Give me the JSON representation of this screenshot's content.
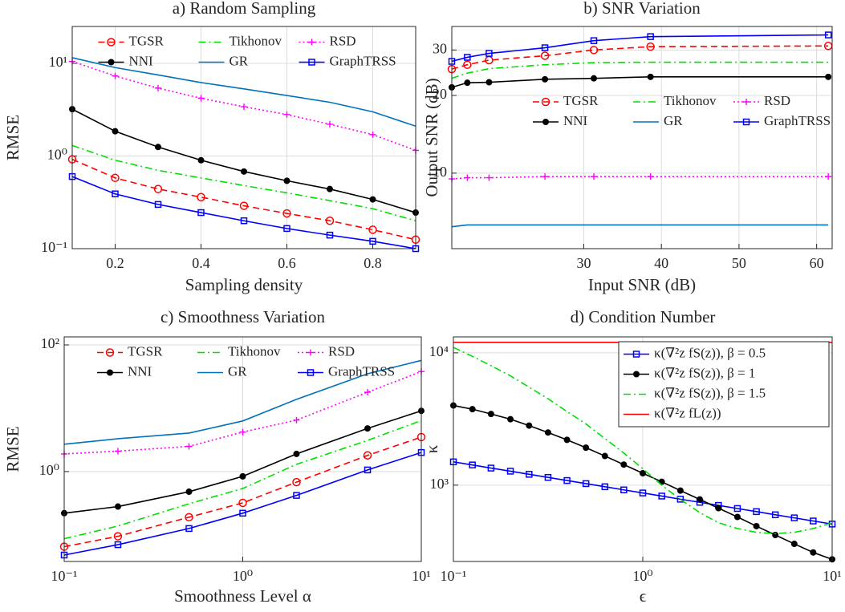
{
  "chart_data": [
    {
      "type": "line",
      "title": "a) Random Sampling",
      "x_label": "Sampling density",
      "y_label": "RMSE",
      "x": [
        0.1,
        0.2,
        0.3,
        0.4,
        0.5,
        0.6,
        0.7,
        0.8,
        0.9
      ],
      "xlim": [
        0.1,
        0.9
      ],
      "ylim": [
        0.1,
        25
      ],
      "xscale": "linear",
      "yscale": "log",
      "xticks": [
        0.2,
        0.4,
        0.6,
        0.8
      ],
      "yticks": [
        {
          "value": 0.1,
          "label": "10⁻¹"
        },
        {
          "value": 1,
          "label": "10⁰"
        },
        {
          "value": 10,
          "label": "10¹"
        }
      ],
      "grid": true,
      "legend": "upper center",
      "series": [
        {
          "name": "TGSR",
          "color": "#ff0000",
          "linestyle": "dashed",
          "marker": "circle",
          "values": [
            0.92,
            0.58,
            0.44,
            0.36,
            0.29,
            0.24,
            0.2,
            0.16,
            0.125
          ]
        },
        {
          "name": "Tikhonov",
          "color": "#00e000",
          "linestyle": "dashdot",
          "marker": "none",
          "values": [
            1.3,
            0.9,
            0.7,
            0.58,
            0.48,
            0.4,
            0.33,
            0.27,
            0.2
          ]
        },
        {
          "name": "RSD",
          "color": "#ff00ff",
          "linestyle": "dotted",
          "marker": "plus",
          "values": [
            10.5,
            7.3,
            5.4,
            4.2,
            3.4,
            2.8,
            2.2,
            1.7,
            1.15
          ]
        },
        {
          "name": "NNI",
          "color": "#000000",
          "linestyle": "solid",
          "marker": "dot",
          "values": [
            3.2,
            1.85,
            1.25,
            0.9,
            0.68,
            0.54,
            0.44,
            0.34,
            0.245
          ]
        },
        {
          "name": "GR",
          "color": "#0072bd",
          "linestyle": "solid",
          "marker": "none",
          "values": [
            11.5,
            9.0,
            7.5,
            6.2,
            5.3,
            4.5,
            3.8,
            3.0,
            2.1
          ]
        },
        {
          "name": "GraphTRSS",
          "color": "#0000ff",
          "linestyle": "solid",
          "marker": "square",
          "values": [
            0.6,
            0.39,
            0.3,
            0.245,
            0.2,
            0.165,
            0.14,
            0.12,
            0.1
          ]
        }
      ]
    },
    {
      "type": "line",
      "title": "b) SNR Variation",
      "x_label": "Input SNR (dB)",
      "y_label": "Output SNR (dB)",
      "x": [
        13,
        15,
        17.8,
        25,
        31.3,
        38.6,
        61.5
      ],
      "xlim": [
        13,
        62
      ],
      "ylim": [
        5.1,
        37
      ],
      "xscale": "linear",
      "yscale": "log",
      "xticks": [
        30,
        40,
        50,
        60
      ],
      "yticks": [
        10,
        20,
        30
      ],
      "grid": true,
      "legend": "center right",
      "series": [
        {
          "name": "TGSR",
          "color": "#ff0000",
          "linestyle": "dashed",
          "marker": "circle",
          "values": [
            25.3,
            26.3,
            27.4,
            28.5,
            30,
            30.9,
            31.1
          ]
        },
        {
          "name": "Tikhonov",
          "color": "#00e000",
          "linestyle": "dashdot",
          "marker": "none",
          "values": [
            23.3,
            24.4,
            25.4,
            26.3,
            26.8,
            26.9,
            26.9
          ]
        },
        {
          "name": "RSD",
          "color": "#ff00ff",
          "linestyle": "dotted",
          "marker": "plus",
          "values": [
            9.5,
            9.6,
            9.6,
            9.7,
            9.7,
            9.7,
            9.7
          ]
        },
        {
          "name": "NNI",
          "color": "#000000",
          "linestyle": "solid",
          "marker": "dot",
          "values": [
            21.5,
            22.4,
            22.5,
            23.1,
            23.3,
            23.6,
            23.6
          ]
        },
        {
          "name": "GR",
          "color": "#0072bd",
          "linestyle": "solid",
          "marker": "none",
          "values": [
            6.2,
            6.3,
            6.3,
            6.3,
            6.3,
            6.3,
            6.3
          ]
        },
        {
          "name": "GraphTRSS",
          "color": "#0000ff",
          "linestyle": "solid",
          "marker": "square",
          "values": [
            27.1,
            28.1,
            29.1,
            30.6,
            32.6,
            33.8,
            34.3
          ]
        }
      ]
    },
    {
      "type": "line",
      "title": "c) Smoothness Variation",
      "x_label": "Smoothness Level α",
      "y_label": "RMSE",
      "x": [
        0.1,
        0.2,
        0.5,
        1,
        2,
        5,
        10
      ],
      "xlim": [
        0.1,
        10
      ],
      "ylim": [
        0.038,
        134
      ],
      "xscale": "log",
      "yscale": "log",
      "xticks": [
        {
          "value": 0.1,
          "label": "10⁻¹"
        },
        {
          "value": 1,
          "label": "10⁰"
        },
        {
          "value": 10,
          "label": "10¹"
        }
      ],
      "yticks": [
        {
          "value": 1,
          "label": "10⁰"
        },
        {
          "value": 100,
          "label": "10²"
        }
      ],
      "grid": true,
      "legend": "upper center",
      "series": [
        {
          "name": "TGSR",
          "color": "#ff0000",
          "linestyle": "dashed",
          "marker": "circle",
          "values": [
            0.065,
            0.095,
            0.19,
            0.32,
            0.68,
            1.8,
            3.5
          ]
        },
        {
          "name": "Tikhonov",
          "color": "#00e000",
          "linestyle": "dashdot",
          "marker": "none",
          "values": [
            0.087,
            0.138,
            0.31,
            0.54,
            1.3,
            3.1,
            6.4
          ]
        },
        {
          "name": "RSD",
          "color": "#ff00ff",
          "linestyle": "dotted",
          "marker": "plus",
          "values": [
            1.9,
            2.1,
            2.5,
            4.2,
            6.5,
            17.9,
            38
          ]
        },
        {
          "name": "NNI",
          "color": "#000000",
          "linestyle": "solid",
          "marker": "dot",
          "values": [
            0.22,
            0.28,
            0.48,
            0.84,
            1.9,
            4.8,
            9.1
          ]
        },
        {
          "name": "GR",
          "color": "#0072bd",
          "linestyle": "solid",
          "marker": "none",
          "values": [
            2.7,
            3.3,
            4.05,
            6.3,
            13.8,
            35,
            57
          ]
        },
        {
          "name": "GraphTRSS",
          "color": "#0000ff",
          "linestyle": "solid",
          "marker": "square",
          "values": [
            0.048,
            0.07,
            0.126,
            0.22,
            0.42,
            1.06,
            2.0
          ]
        }
      ]
    },
    {
      "type": "line",
      "title": "d) Condition Number",
      "x_label": "ϵ",
      "y_label": "κ",
      "x": [
        0.1,
        0.126,
        0.158,
        0.2,
        0.251,
        0.316,
        0.398,
        0.501,
        0.631,
        0.794,
        1,
        1.26,
        1.58,
        2,
        2.51,
        3.16,
        3.98,
        5.01,
        6.31,
        7.94,
        10
      ],
      "xlim": [
        0.1,
        10
      ],
      "ylim": [
        265,
        13200
      ],
      "xscale": "log",
      "yscale": "log",
      "xticks": [
        {
          "value": 0.1,
          "label": "10⁻¹"
        },
        {
          "value": 1,
          "label": "10⁰"
        },
        {
          "value": 10,
          "label": "10¹"
        }
      ],
      "yticks": [
        {
          "value": 1000,
          "label": "10³"
        },
        {
          "value": 10000,
          "label": "10⁴"
        }
      ],
      "grid": true,
      "legend": "upper right",
      "legend_frame": true,
      "series": [
        {
          "name": "κ(∇²z fS(z)), β = 0.5",
          "color": "#0000ff",
          "linestyle": "solid",
          "marker": "square",
          "values": [
            1500,
            1421,
            1346,
            1275,
            1208,
            1144,
            1084,
            1027,
            973,
            921,
            873,
            827,
            783,
            742,
            703,
            666,
            631,
            597,
            566,
            536,
            508
          ]
        },
        {
          "name": "κ(∇²z fS(z)), β = 1",
          "color": "#000000",
          "linestyle": "solid",
          "marker": "dot",
          "values": [
            4000,
            3750,
            3450,
            3150,
            2820,
            2500,
            2200,
            1920,
            1660,
            1430,
            1230,
            1060,
            910,
            780,
            670,
            575,
            490,
            420,
            360,
            310,
            275
          ]
        },
        {
          "name": "κ(∇²z fS(z)), β = 1.5",
          "color": "#00e000",
          "linestyle": "dashdot",
          "marker": "none",
          "values": [
            11000,
            9400,
            8000,
            6700,
            5500,
            4500,
            3600,
            2900,
            2250,
            1750,
            1330,
            1000,
            780,
            620,
            520,
            470,
            440,
            430,
            440,
            470,
            520
          ]
        },
        {
          "name": "κ(∇²z fL(z))",
          "color": "#ff0000",
          "linestyle": "solid",
          "marker": "none",
          "values": [
            12000,
            12000,
            12000,
            12000,
            12000,
            12000,
            12000,
            12000,
            12000,
            12000,
            12000,
            12000,
            12000,
            12000,
            12000,
            12000,
            12000,
            12000,
            12000,
            12000,
            12000
          ]
        }
      ]
    }
  ]
}
